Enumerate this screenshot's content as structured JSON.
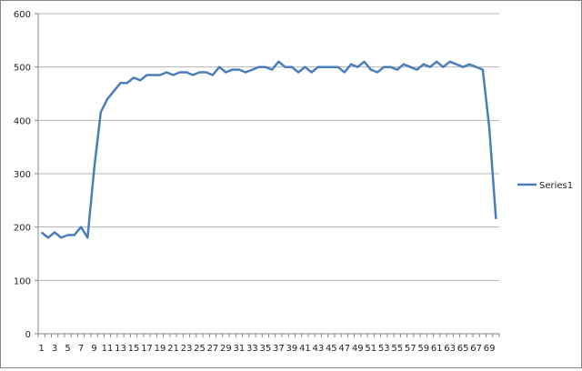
{
  "chart_data": {
    "type": "line",
    "title": "",
    "xlabel": "",
    "ylabel": "",
    "ylim": [
      0,
      600
    ],
    "yticks": [
      0,
      100,
      200,
      300,
      400,
      500,
      600
    ],
    "grid": "horizontal major gridlines",
    "legend_position": "right",
    "x": [
      1,
      2,
      3,
      4,
      5,
      6,
      7,
      8,
      9,
      10,
      11,
      12,
      13,
      14,
      15,
      16,
      17,
      18,
      19,
      20,
      21,
      22,
      23,
      24,
      25,
      26,
      27,
      28,
      29,
      30,
      31,
      32,
      33,
      34,
      35,
      36,
      37,
      38,
      39,
      40,
      41,
      42,
      43,
      44,
      45,
      46,
      47,
      48,
      49,
      50,
      51,
      52,
      53,
      54,
      55,
      56,
      57,
      58,
      59,
      60,
      61,
      62,
      63,
      64,
      65,
      66,
      67,
      68,
      69,
      70
    ],
    "xtick_labels": [
      "1",
      "3",
      "5",
      "7",
      "9",
      "11",
      "13",
      "15",
      "17",
      "19",
      "21",
      "23",
      "25",
      "27",
      "29",
      "31",
      "33",
      "35",
      "37",
      "39",
      "41",
      "43",
      "45",
      "47",
      "49",
      "51",
      "53",
      "55",
      "57",
      "59",
      "61",
      "63",
      "65",
      "67",
      "69"
    ],
    "series": [
      {
        "name": "Series1",
        "color": "#4a7ebb",
        "values": [
          190,
          180,
          190,
          180,
          185,
          185,
          200,
          180,
          310,
          415,
          440,
          455,
          470,
          470,
          480,
          475,
          485,
          485,
          485,
          490,
          485,
          490,
          490,
          485,
          490,
          490,
          485,
          500,
          490,
          495,
          495,
          490,
          495,
          500,
          500,
          495,
          510,
          500,
          500,
          490,
          500,
          490,
          500,
          500,
          500,
          500,
          490,
          505,
          500,
          510,
          495,
          490,
          500,
          500,
          495,
          505,
          500,
          495,
          505,
          500,
          510,
          500,
          510,
          505,
          500,
          505,
          500,
          495,
          385,
          215
        ]
      }
    ]
  }
}
